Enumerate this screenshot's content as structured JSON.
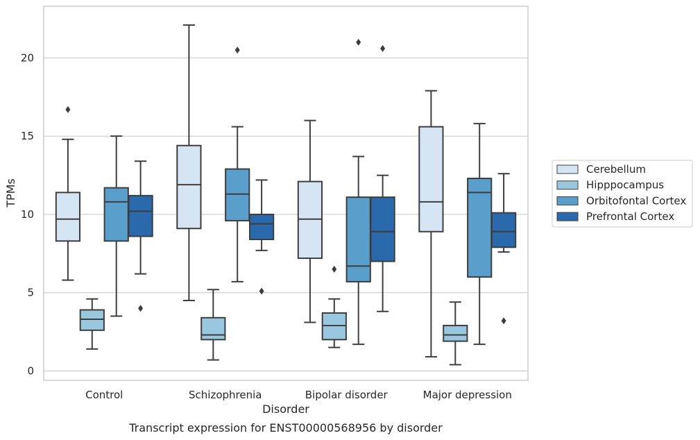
{
  "chart_data": {
    "type": "box",
    "categories": [
      "Control",
      "Schizophrenia",
      "Bipolar disorder",
      "Major depression"
    ],
    "xlabel": "Disorder",
    "ylabel": "TPMs",
    "caption": "Transcript expression for ENST00000568956 by disorder",
    "yticks": [
      0,
      5,
      10,
      15,
      20
    ],
    "ylim": [
      -0.6,
      23.3
    ],
    "grid": true,
    "legend_position": "right",
    "series": [
      {
        "name": "Cerebellum",
        "color": "#d6e5f4",
        "boxes": [
          {
            "whislo": 5.8,
            "q1": 8.3,
            "med": 9.7,
            "q3": 11.4,
            "whishi": 14.8,
            "fliers": [
              16.7
            ]
          },
          {
            "whislo": 4.5,
            "q1": 9.1,
            "med": 11.9,
            "q3": 14.4,
            "whishi": 22.1,
            "fliers": []
          },
          {
            "whislo": 3.1,
            "q1": 7.2,
            "med": 9.7,
            "q3": 12.1,
            "whishi": 16.0,
            "fliers": []
          },
          {
            "whislo": 0.9,
            "q1": 8.9,
            "med": 10.8,
            "q3": 15.6,
            "whishi": 17.9,
            "fliers": []
          }
        ]
      },
      {
        "name": "Hipppocampus",
        "color": "#9ac7e0",
        "boxes": [
          {
            "whislo": 1.4,
            "q1": 2.6,
            "med": 3.3,
            "q3": 3.9,
            "whishi": 4.6,
            "fliers": []
          },
          {
            "whislo": 0.7,
            "q1": 2.0,
            "med": 2.3,
            "q3": 3.4,
            "whishi": 5.2,
            "fliers": []
          },
          {
            "whislo": 1.5,
            "q1": 2.0,
            "med": 2.9,
            "q3": 3.7,
            "whishi": 4.6,
            "fliers": [
              6.5
            ]
          },
          {
            "whislo": 0.4,
            "q1": 1.9,
            "med": 2.3,
            "q3": 2.9,
            "whishi": 4.4,
            "fliers": []
          }
        ]
      },
      {
        "name": "Orbitofontal Cortex",
        "color": "#5a9ecb",
        "boxes": [
          {
            "whislo": 3.5,
            "q1": 8.3,
            "med": 10.8,
            "q3": 11.7,
            "whishi": 15.0,
            "fliers": []
          },
          {
            "whislo": 5.7,
            "q1": 9.6,
            "med": 11.3,
            "q3": 12.9,
            "whishi": 15.6,
            "fliers": [
              20.5
            ]
          },
          {
            "whislo": 1.7,
            "q1": 5.7,
            "med": 6.7,
            "q3": 11.1,
            "whishi": 13.7,
            "fliers": [
              21.0
            ]
          },
          {
            "whislo": 1.7,
            "q1": 6.0,
            "med": 11.4,
            "q3": 12.3,
            "whishi": 15.8,
            "fliers": []
          }
        ]
      },
      {
        "name": "Prefrontal Cortex",
        "color": "#2a69ac",
        "boxes": [
          {
            "whislo": 6.2,
            "q1": 8.6,
            "med": 10.2,
            "q3": 11.2,
            "whishi": 13.4,
            "fliers": [
              4.0
            ]
          },
          {
            "whislo": 7.7,
            "q1": 8.4,
            "med": 9.4,
            "q3": 10.0,
            "whishi": 12.2,
            "fliers": [
              5.1
            ]
          },
          {
            "whislo": 3.8,
            "q1": 7.0,
            "med": 8.9,
            "q3": 11.1,
            "whishi": 12.5,
            "fliers": [
              20.6
            ]
          },
          {
            "whislo": 7.6,
            "q1": 7.9,
            "med": 8.9,
            "q3": 10.1,
            "whishi": 12.6,
            "fliers": [
              3.2
            ]
          }
        ]
      }
    ]
  }
}
